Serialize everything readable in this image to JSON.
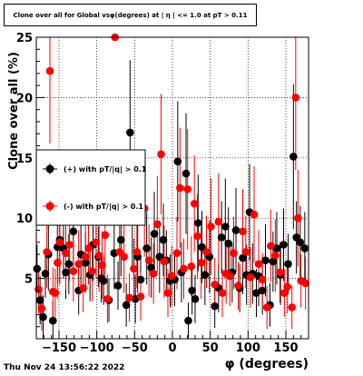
{
  "title": "Clone  over all for Global vsφ(degrees) at | η | <= 1.0 at pT > 0.11",
  "footer": "Thu Nov 24 13:56:22 2022",
  "colors": {
    "pos": "#000000",
    "neg": "#ff0000",
    "axis": "#000000"
  },
  "chart_data": {
    "type": "scatter",
    "title": "Clone  over all for Global vsφ(degrees) at | η | <= 1.0 at pT > 0.11",
    "xlabel": "φ (degrees)",
    "ylabel": "Clone  over all (%)",
    "xlim": [
      -180,
      180
    ],
    "ylim": [
      0,
      25
    ],
    "xticks": [
      -150,
      -100,
      -50,
      0,
      50,
      100,
      150
    ],
    "xtick_labels": [
      "−150",
      "−100",
      "−50",
      "0",
      "50",
      "100",
      "150"
    ],
    "yticks": [
      5,
      10,
      15,
      20,
      25
    ],
    "ytick_labels": [
      "5",
      "10",
      "15",
      "20",
      "25"
    ],
    "grid": true,
    "legend_position": "left",
    "series": [
      {
        "name": "(+) with pT/|q| > 0.1",
        "color": "#000000",
        "points": [
          [
            -179,
            5.8,
            2.0
          ],
          [
            -175,
            3.2,
            2.0
          ],
          [
            -171,
            1.8,
            1.8
          ],
          [
            -168,
            5.4,
            2.0
          ],
          [
            -164,
            7.0,
            3.0
          ],
          [
            -158,
            1.5,
            1.6
          ],
          [
            -152,
            7.6,
            3.0
          ],
          [
            -149,
            8.2,
            3.5
          ],
          [
            -144,
            7.5,
            2.5
          ],
          [
            -141,
            5.5,
            2.2
          ],
          [
            -137,
            6.2,
            2.5
          ],
          [
            -131,
            8.9,
            3.0
          ],
          [
            -124,
            4.0,
            2.0
          ],
          [
            -121,
            7.0,
            3.0
          ],
          [
            -115,
            6.3,
            2.5
          ],
          [
            -109,
            5.3,
            2.2
          ],
          [
            -105,
            7.8,
            3.0
          ],
          [
            -98,
            6.8,
            2.5
          ],
          [
            -94,
            5.0,
            2.0
          ],
          [
            -91,
            4.8,
            2.0
          ],
          [
            -84,
            3.2,
            1.8
          ],
          [
            -77,
            7.1,
            3.0
          ],
          [
            -72,
            4.4,
            2.0
          ],
          [
            -68,
            8.2,
            3.0
          ],
          [
            -61,
            2.8,
            1.8
          ],
          [
            -56,
            17.1,
            6.0
          ],
          [
            -53,
            9.7,
            4.0
          ],
          [
            -49,
            3.3,
            2.0
          ],
          [
            -46,
            6.8,
            3.0
          ],
          [
            -42,
            4.9,
            2.0
          ],
          [
            -34,
            7.5,
            3.0
          ],
          [
            -28,
            5.9,
            2.5
          ],
          [
            -24,
            8.7,
            3.5
          ],
          [
            -17,
            6.8,
            3.0
          ],
          [
            -12,
            8.2,
            3.0
          ],
          [
            -8,
            6.5,
            2.5
          ],
          [
            -3,
            4.8,
            2.2
          ],
          [
            3,
            4.9,
            2.2
          ],
          [
            7,
            14.7,
            5.0
          ],
          [
            12,
            5.5,
            2.5
          ],
          [
            18,
            13.7,
            5.0
          ],
          [
            21,
            1.5,
            1.5
          ],
          [
            26,
            4.0,
            2.0
          ],
          [
            30,
            3.3,
            2.0
          ],
          [
            34,
            9.6,
            4.0
          ],
          [
            39,
            7.6,
            3.0
          ],
          [
            43,
            5.3,
            2.5
          ],
          [
            49,
            6.8,
            3.0
          ],
          [
            56,
            2.7,
            1.8
          ],
          [
            61,
            4.2,
            2.0
          ],
          [
            65,
            8.4,
            3.0
          ],
          [
            70,
            9.3,
            4.0
          ],
          [
            74,
            7.9,
            3.0
          ],
          [
            79,
            5.5,
            2.5
          ],
          [
            84,
            9.0,
            3.5
          ],
          [
            89,
            4.2,
            2.0
          ],
          [
            93,
            6.7,
            3.0
          ],
          [
            98,
            5.3,
            2.5
          ],
          [
            102,
            10.5,
            4.0
          ],
          [
            106,
            5.4,
            2.5
          ],
          [
            111,
            3.8,
            2.0
          ],
          [
            114,
            5.2,
            2.5
          ],
          [
            119,
            4.0,
            2.0
          ],
          [
            123,
            6.5,
            3.0
          ],
          [
            129,
            2.8,
            1.8
          ],
          [
            133,
            6.4,
            2.5
          ],
          [
            138,
            7.5,
            3.0
          ],
          [
            143,
            5.3,
            2.5
          ],
          [
            147,
            7.8,
            3.0
          ],
          [
            153,
            6.2,
            2.5
          ],
          [
            160,
            15.1,
            6.0
          ],
          [
            164,
            8.4,
            3.0
          ],
          [
            169,
            8.0,
            3.0
          ],
          [
            175,
            7.5,
            3.0
          ]
        ]
      },
      {
        "name": "(-) with pT/|q| > 0.1",
        "color": "#ff0000",
        "points": [
          [
            -177,
            4.1,
            2.0
          ],
          [
            -173,
            2.5,
            1.8
          ],
          [
            -166,
            7.2,
            3.0
          ],
          [
            -162,
            22.2,
            6.0
          ],
          [
            -158,
            3.9,
            2.0
          ],
          [
            -155,
            3.8,
            2.0
          ],
          [
            -152,
            6.3,
            3.0
          ],
          [
            -149,
            8.0,
            3.5
          ],
          [
            -141,
            7.1,
            3.0
          ],
          [
            -136,
            7.8,
            3.0
          ],
          [
            -131,
            5.6,
            2.5
          ],
          [
            -124,
            6.2,
            2.8
          ],
          [
            -118,
            4.2,
            2.0
          ],
          [
            -115,
            6.8,
            3.0
          ],
          [
            -111,
            7.5,
            3.0
          ],
          [
            -106,
            5.6,
            2.5
          ],
          [
            -101,
            8.0,
            3.0
          ],
          [
            -97,
            6.9,
            3.0
          ],
          [
            -93,
            6.1,
            2.8
          ],
          [
            -89,
            8.6,
            3.5
          ],
          [
            -86,
            3.3,
            2.0
          ],
          [
            -76,
            25.0,
            0.0
          ],
          [
            -70,
            7.2,
            3.0
          ],
          [
            -64,
            6.8,
            3.0
          ],
          [
            -57,
            3.4,
            2.0
          ],
          [
            -51,
            5.8,
            2.5
          ],
          [
            -47,
            7.2,
            3.0
          ],
          [
            -42,
            3.5,
            2.0
          ],
          [
            -37,
            10.8,
            4.0
          ],
          [
            -31,
            6.5,
            3.0
          ],
          [
            -25,
            5.4,
            2.5
          ],
          [
            -20,
            9.5,
            4.0
          ],
          [
            -15,
            15.3,
            5.0
          ],
          [
            -11,
            6.4,
            3.0
          ],
          [
            -6,
            3.8,
            2.0
          ],
          [
            -1,
            5.2,
            2.5
          ],
          [
            6,
            7.1,
            3.0
          ],
          [
            10,
            12.5,
            5.0
          ],
          [
            15,
            5.8,
            2.5
          ],
          [
            20,
            12.4,
            5.0
          ],
          [
            25,
            6.0,
            2.5
          ],
          [
            29,
            11.2,
            4.0
          ],
          [
            33,
            8.5,
            3.5
          ],
          [
            38,
            6.3,
            3.0
          ],
          [
            45,
            7.2,
            3.0
          ],
          [
            51,
            9.3,
            4.0
          ],
          [
            56,
            4.5,
            2.2
          ],
          [
            61,
            9.7,
            4.0
          ],
          [
            66,
            3.8,
            2.0
          ],
          [
            71,
            5.4,
            2.5
          ],
          [
            76,
            5.2,
            2.5
          ],
          [
            81,
            7.1,
            3.0
          ],
          [
            87,
            4.4,
            2.0
          ],
          [
            93,
            8.9,
            3.5
          ],
          [
            97,
            7.2,
            3.0
          ],
          [
            103,
            5.1,
            2.5
          ],
          [
            108,
            10.3,
            4.0
          ],
          [
            114,
            6.2,
            2.8
          ],
          [
            119,
            4.9,
            2.2
          ],
          [
            125,
            2.6,
            1.8
          ],
          [
            130,
            7.7,
            3.0
          ],
          [
            136,
            6.9,
            3.0
          ],
          [
            142,
            5.5,
            2.5
          ],
          [
            148,
            3.8,
            2.0
          ],
          [
            152,
            4.3,
            2.2
          ],
          [
            158,
            2.6,
            1.8
          ],
          [
            163,
            20.0,
            6.0
          ],
          [
            166,
            10.0,
            4.0
          ],
          [
            170,
            4.8,
            2.2
          ],
          [
            176,
            4.6,
            2.2
          ]
        ]
      }
    ]
  }
}
